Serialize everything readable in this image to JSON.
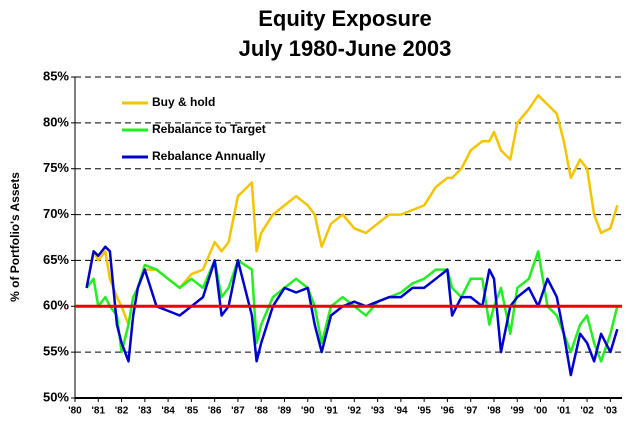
{
  "chart_data": {
    "type": "line",
    "title": "Equity Exposure",
    "subtitle": "July 1980-June 2003",
    "y_label": "% of Portfolio's Assets",
    "x": [
      1980.5,
      1980.8,
      1981,
      1981.3,
      1981.5,
      1981.8,
      1982,
      1982.3,
      1982.5,
      1982.7,
      1983,
      1983.5,
      1984,
      1984.5,
      1985,
      1985.5,
      1986,
      1986.3,
      1986.6,
      1987,
      1987.6,
      1987.8,
      1988,
      1988.5,
      1989,
      1989.5,
      1990,
      1990.3,
      1990.6,
      1991,
      1991.5,
      1992,
      1992.5,
      1993,
      1993.5,
      1994,
      1994.5,
      1995,
      1995.5,
      1996,
      1996.2,
      1996.6,
      1997,
      1997.5,
      1997.8,
      1998,
      1998.3,
      1998.7,
      1999,
      1999.5,
      1999.9,
      2000.3,
      2000.7,
      2001,
      2001.3,
      2001.7,
      2002,
      2002.3,
      2002.6,
      2003,
      2003.3
    ],
    "series": [
      {
        "name": "Buy & hold",
        "color": "#f5c400",
        "values": [
          62,
          66,
          65,
          66,
          63,
          61,
          60,
          58,
          61,
          62,
          64,
          64,
          63,
          62,
          63.5,
          64,
          67,
          66,
          67,
          72,
          73.5,
          66,
          68,
          70,
          71,
          72,
          71,
          70,
          66.5,
          69,
          70,
          68.5,
          68,
          69,
          70,
          70,
          70.5,
          71,
          73,
          74,
          74,
          75,
          77,
          78,
          78,
          79,
          77,
          76,
          80,
          81.5,
          83,
          82,
          81,
          78,
          74,
          76,
          75,
          70,
          68,
          68.5,
          71
        ]
      },
      {
        "name": "Rebalance to Target",
        "color": "#22ee22",
        "values": [
          62,
          63,
          60,
          61,
          60,
          59,
          55,
          58,
          61,
          62,
          64.5,
          64,
          63,
          62,
          63,
          62,
          65,
          61,
          62,
          65,
          64,
          56,
          58,
          61,
          62,
          63,
          62,
          60,
          56,
          60,
          61,
          60,
          59,
          60.5,
          61,
          61.5,
          62.5,
          63,
          64,
          64,
          62,
          61,
          63,
          63,
          58,
          60,
          62,
          57,
          62,
          63,
          66,
          60,
          59,
          57,
          55,
          58,
          59,
          56,
          54,
          57,
          60
        ]
      },
      {
        "name": "Rebalance Annually",
        "color": "#0000cc",
        "values": [
          62,
          66,
          65.5,
          66.5,
          66,
          58,
          56,
          54,
          59,
          62,
          64,
          60,
          59.5,
          59,
          60,
          61,
          65,
          59,
          60,
          65,
          59,
          54,
          56,
          60,
          62,
          61.5,
          62,
          58,
          55,
          59,
          60,
          60.5,
          60,
          60.5,
          61,
          61,
          62,
          62,
          63,
          64,
          59,
          61,
          61,
          60,
          64,
          63,
          55,
          60,
          61,
          62,
          60,
          63,
          61,
          57,
          52.5,
          57,
          56,
          54,
          57,
          55,
          57.5
        ]
      }
    ],
    "target": 60,
    "target_color": "#ee0000",
    "xlim": [
      1980,
      2003.5
    ],
    "xticks": [
      {
        "value": 1980,
        "label": "'80"
      },
      {
        "value": 1981,
        "label": "'81"
      },
      {
        "value": 1982,
        "label": "'82"
      },
      {
        "value": 1983,
        "label": "'83"
      },
      {
        "value": 1984,
        "label": "'84"
      },
      {
        "value": 1985,
        "label": "'85"
      },
      {
        "value": 1986,
        "label": "'86"
      },
      {
        "value": 1987,
        "label": "'87"
      },
      {
        "value": 1988,
        "label": "'88"
      },
      {
        "value": 1989,
        "label": "'89"
      },
      {
        "value": 1990,
        "label": "'90"
      },
      {
        "value": 1991,
        "label": "'91"
      },
      {
        "value": 1992,
        "label": "'92"
      },
      {
        "value": 1993,
        "label": "'93"
      },
      {
        "value": 1994,
        "label": "'94"
      },
      {
        "value": 1995,
        "label": "'95"
      },
      {
        "value": 1996,
        "label": "'96"
      },
      {
        "value": 1997,
        "label": "'97"
      },
      {
        "value": 1998,
        "label": "'98"
      },
      {
        "value": 1999,
        "label": "'99"
      },
      {
        "value": 2000,
        "label": "'00"
      },
      {
        "value": 2001,
        "label": "'01"
      },
      {
        "value": 2002,
        "label": "'02"
      },
      {
        "value": 2003,
        "label": "'03"
      }
    ],
    "ylim": [
      50,
      85
    ],
    "yticks": [
      {
        "value": 50,
        "label": "50%"
      },
      {
        "value": 55,
        "label": "55%"
      },
      {
        "value": 60,
        "label": "60%"
      },
      {
        "value": 65,
        "label": "65%"
      },
      {
        "value": 70,
        "label": "70%"
      },
      {
        "value": 75,
        "label": "75%"
      },
      {
        "value": 80,
        "label": "80%"
      },
      {
        "value": 85,
        "label": "85%"
      }
    ],
    "grid": true,
    "legend": "upper left"
  }
}
